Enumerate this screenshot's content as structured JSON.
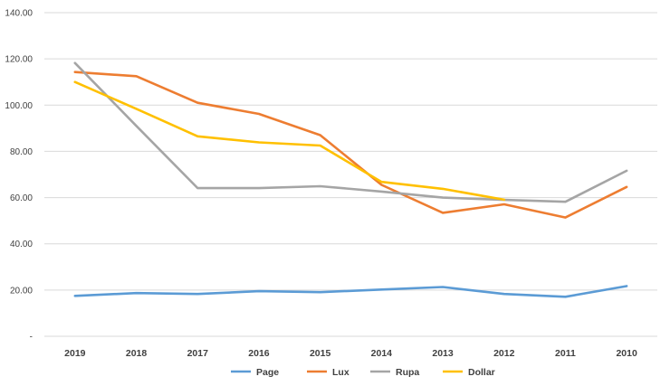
{
  "chart_data": {
    "type": "line",
    "title": "",
    "xlabel": "",
    "ylabel": "",
    "categories": [
      "2019",
      "2018",
      "2017",
      "2016",
      "2015",
      "2014",
      "2013",
      "2012",
      "2011",
      "2010"
    ],
    "y_tick_labels": [
      "-",
      "20.00",
      "40.00",
      "60.00",
      "80.00",
      "100.00",
      "120.00",
      "140.00"
    ],
    "ylim": [
      0,
      140
    ],
    "grid": true,
    "legend": "bottom",
    "series": [
      {
        "name": "Page",
        "color": "#5b9bd5",
        "values": [
          17.5,
          18.7,
          18.3,
          19.5,
          19.1,
          20.2,
          21.3,
          18.3,
          17.1,
          21.7
        ]
      },
      {
        "name": "Lux",
        "color": "#ed7d31",
        "values": [
          114.3,
          112.5,
          101.0,
          96.2,
          87.0,
          65.5,
          53.4,
          57.1,
          51.4,
          64.6
        ]
      },
      {
        "name": "Rupa",
        "color": "#a5a5a5",
        "values": [
          118.2,
          91.0,
          64.1,
          64.1,
          64.9,
          62.6,
          60.0,
          59.0,
          58.2,
          71.6
        ]
      },
      {
        "name": "Dollar",
        "color": "#ffc000",
        "values": [
          110.0,
          98.4,
          86.5,
          83.9,
          82.5,
          66.8,
          63.8,
          59.1,
          null,
          null
        ]
      }
    ]
  }
}
